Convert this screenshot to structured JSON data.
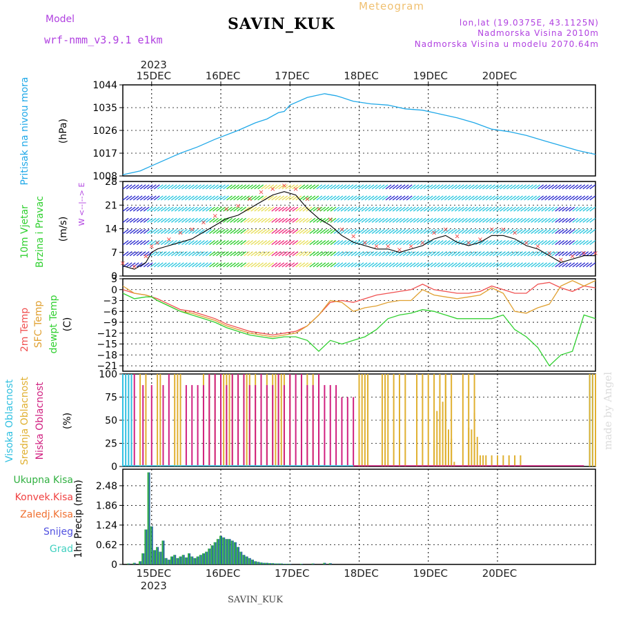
{
  "header": {
    "model_label": "Model",
    "model_name": "wrf-nmm_v3.9.1  e1km",
    "station": "SAVIN_KUK",
    "product": "Meteogram",
    "coords": "lon,lat (19.0375E, 43.1125N)",
    "elevation": "Nadmorska Visina 2010m",
    "model_elevation": "Nadmorska Visina u modelu 2070.64m",
    "watermark": "made by Angel",
    "footer_station": "SAVIN_KUK"
  },
  "colors": {
    "pressure": "#1fa8e8",
    "temp2m": "#f05050",
    "sfc_temp": "#e0a030",
    "dewpoint": "#30d030",
    "high_cloud": "#30c0e0",
    "mid_cloud": "#e0b030",
    "low_cloud": "#d02080",
    "precip_total": "#30b040",
    "precip_conv": "#f04040",
    "precip_frz": "#f07030",
    "snow": "#5050e0",
    "graupel": "#40d0c0",
    "wind_speed_line": "#000000",
    "wind_low": "#3030d0",
    "wind_mid": "#30c8e0",
    "wind_green": "#30d030",
    "wind_yellow": "#e8e060",
    "wind_pink": "#f03080",
    "gust_marker": "#f04040"
  },
  "chart_data": [
    {
      "id": "pressure",
      "type": "line",
      "ylabel": "Pritisak na nivou mora",
      "unit": "(hPa)",
      "ylim": [
        1008,
        1044
      ],
      "yticks": [
        1008,
        1017,
        1026,
        1035,
        1044
      ],
      "x_day_labels": [
        "15DEC",
        "16DEC",
        "17DEC",
        "18DEC",
        "19DEC",
        "20DEC"
      ],
      "x_year_label": "2023",
      "xlim_hours": [
        -10,
        154
      ],
      "series": [
        {
          "color_key": "pressure",
          "x": [
            -10,
            -4,
            0,
            6,
            10,
            16,
            22,
            30,
            36,
            40,
            44,
            46,
            48,
            54,
            60,
            64,
            66,
            70,
            76,
            82,
            88,
            94,
            100,
            106,
            112,
            118,
            124,
            130,
            136,
            142,
            148,
            154
          ],
          "y": [
            1008.5,
            1010,
            1012,
            1015,
            1017,
            1019.5,
            1022.5,
            1026,
            1029,
            1030.5,
            1033,
            1033.5,
            1036,
            1039,
            1040.5,
            1039.7,
            1039,
            1037.5,
            1036.5,
            1036,
            1034.5,
            1034,
            1032.5,
            1031,
            1029,
            1026.5,
            1025.5,
            1024,
            1022,
            1020,
            1018,
            1016.5
          ]
        }
      ]
    },
    {
      "id": "wind",
      "type": "line",
      "ylabel": "10m Vjetar Brzina i Pravac",
      "unit": "(m/s)",
      "direction_key": "W  <--|-->  E",
      "ylim": [
        0,
        28
      ],
      "yticks": [
        0,
        7,
        14,
        21,
        28
      ],
      "x": [
        -10,
        -6,
        -2,
        0,
        2,
        6,
        10,
        14,
        18,
        22,
        26,
        30,
        34,
        38,
        42,
        46,
        50,
        54,
        58,
        62,
        66,
        70,
        74,
        78,
        82,
        86,
        90,
        94,
        98,
        102,
        106,
        110,
        114,
        118,
        122,
        126,
        130,
        134,
        138,
        142,
        146,
        150,
        154
      ],
      "speed": [
        3,
        2,
        4,
        7,
        8,
        9,
        10,
        11,
        13,
        15,
        17,
        18,
        20,
        22,
        24,
        25,
        24,
        20,
        17,
        15,
        12,
        10,
        9,
        8,
        8,
        7,
        8,
        9,
        11,
        12,
        10,
        9,
        10,
        12,
        12,
        11,
        9,
        8,
        6,
        4,
        5,
        6,
        6
      ],
      "gust": [
        4,
        3,
        6,
        9,
        10,
        11,
        13,
        14,
        16,
        18,
        20,
        21,
        23,
        25,
        26,
        27,
        26,
        23,
        20,
        17,
        14,
        12,
        10,
        9,
        9,
        8,
        9,
        10,
        13,
        14,
        12,
        10,
        11,
        14,
        14,
        13,
        10,
        9,
        7,
        5,
        6,
        7,
        7
      ]
    },
    {
      "id": "temperature",
      "type": "line",
      "ylabel": [
        "2m Temp",
        "SFC Temp",
        "dewpt Temp"
      ],
      "unit": "(C)",
      "ylim": [
        -22.5,
        3
      ],
      "yticks": [
        3,
        0,
        -3,
        -6,
        -9,
        -12,
        -15,
        -18,
        -21
      ],
      "x": [
        -10,
        -6,
        -2,
        0,
        2,
        6,
        10,
        14,
        18,
        22,
        26,
        30,
        34,
        38,
        42,
        46,
        50,
        54,
        58,
        62,
        66,
        70,
        74,
        78,
        82,
        86,
        90,
        94,
        98,
        102,
        106,
        110,
        114,
        118,
        122,
        126,
        130,
        134,
        138,
        142,
        146,
        150,
        154
      ],
      "series": [
        {
          "name": "2m Temp",
          "color_key": "temp2m",
          "y": [
            0,
            -1,
            -1.5,
            -2,
            -2.5,
            -4,
            -5.5,
            -6,
            -7,
            -8,
            -9.5,
            -10.5,
            -11.5,
            -12,
            -12.5,
            -12,
            -11.5,
            -10,
            -7,
            -3.5,
            -3,
            -3.5,
            -2.5,
            -1.5,
            -1,
            -0.5,
            0,
            1.5,
            0,
            -0.5,
            -1,
            -1,
            -0.5,
            1,
            0,
            -1,
            -1,
            1.5,
            2,
            0.5,
            -0.5,
            1,
            0.5
          ]
        },
        {
          "name": "SFC Temp",
          "color_key": "sfc_temp",
          "y": [
            1,
            -1,
            -1.5,
            -2,
            -3,
            -4.5,
            -6,
            -6.5,
            -7.5,
            -8.5,
            -10,
            -11,
            -12,
            -12.5,
            -13,
            -12.5,
            -12,
            -10,
            -7,
            -3,
            -3.5,
            -6,
            -5,
            -4.5,
            -3.5,
            -3,
            -3,
            0,
            -1.5,
            -2,
            -2.5,
            -2,
            -1.5,
            0.5,
            -1,
            -6,
            -6.5,
            -5,
            -4,
            1,
            2.5,
            1,
            2.5
          ]
        },
        {
          "name": "dewpt Temp",
          "color_key": "dewpoint",
          "y": [
            -1,
            -2.5,
            -2,
            -2,
            -3,
            -4.5,
            -6,
            -7,
            -8,
            -9,
            -10.5,
            -11.5,
            -12.5,
            -13,
            -13.5,
            -13,
            -13,
            -14,
            -17,
            -14,
            -15,
            -14,
            -13,
            -11,
            -8,
            -7,
            -6.5,
            -5.5,
            -6,
            -7,
            -8,
            -8,
            -8,
            -8,
            -7,
            -11,
            -13,
            -16,
            -21,
            -18,
            -17,
            -7,
            -8
          ]
        }
      ]
    },
    {
      "id": "cloud",
      "type": "bar",
      "ylabel": [
        "Visoka Oblacnost",
        "Srednja Oblacnost",
        "Niska Oblacnost"
      ],
      "unit": "(%)",
      "ylim": [
        0,
        100
      ],
      "yticks": [
        0,
        25,
        50,
        75,
        100
      ],
      "series": [
        {
          "name": "Visoka Oblacnost",
          "color_key": "high_cloud",
          "x": [
            -10,
            -9,
            -8,
            -7,
            152,
            153,
            154
          ],
          "y": [
            100,
            100,
            100,
            100,
            100,
            100,
            100
          ]
        },
        {
          "name": "Srednja Oblacnost",
          "color_key": "mid_cloud",
          "x": [
            -4,
            -2,
            2,
            3,
            8,
            9,
            10,
            18,
            20,
            22,
            24,
            25,
            26,
            27,
            28,
            30,
            32,
            33,
            34,
            36,
            38,
            40,
            42,
            43,
            44,
            45,
            46,
            48,
            52,
            54,
            56,
            58,
            72,
            73,
            74,
            75,
            80,
            81,
            82,
            84,
            86,
            88,
            92,
            94,
            96,
            98,
            100,
            102,
            104,
            108,
            110,
            112,
            152,
            153,
            154
          ],
          "y": [
            100,
            100,
            100,
            100,
            100,
            100,
            100,
            100,
            100,
            100,
            100,
            100,
            100,
            100,
            100,
            100,
            100,
            100,
            100,
            100,
            100,
            100,
            100,
            100,
            100,
            100,
            100,
            100,
            100,
            100,
            100,
            100,
            100,
            100,
            100,
            100,
            100,
            100,
            100,
            100,
            100,
            100,
            100,
            100,
            100,
            100,
            100,
            100,
            100,
            100,
            100,
            100,
            100,
            100,
            100
          ]
        },
        {
          "name": "Niska Oblacnost",
          "color_key": "low_cloud",
          "x": [
            -6,
            -3,
            0,
            4,
            6,
            12,
            14,
            16,
            18,
            20,
            22,
            24,
            26,
            28,
            30,
            32,
            34,
            36,
            38,
            40,
            42,
            44,
            46,
            48,
            50,
            52,
            54,
            56,
            58,
            60,
            62,
            64,
            66,
            68,
            70
          ],
          "y": [
            100,
            88,
            88,
            88,
            100,
            88,
            88,
            88,
            88,
            100,
            100,
            100,
            88,
            100,
            100,
            100,
            88,
            88,
            100,
            88,
            88,
            100,
            88,
            100,
            100,
            100,
            88,
            88,
            100,
            88,
            88,
            88,
            75,
            75,
            75
          ]
        }
      ],
      "mid_extra": {
        "x": [
          98,
          99,
          100,
          101,
          102,
          103,
          104,
          105,
          110,
          111,
          112,
          113,
          114,
          115,
          116,
          118,
          120,
          122,
          124,
          126,
          128
        ],
        "y": [
          28,
          60,
          65,
          70,
          100,
          40,
          30,
          5,
          42,
          40,
          58,
          32,
          12,
          12,
          12,
          12,
          12,
          12,
          12,
          12,
          12
        ]
      }
    },
    {
      "id": "precip",
      "type": "bar",
      "ylabel": "1hr Precip",
      "unit": "(mm)",
      "ylim": [
        0,
        3.0
      ],
      "yticks": [
        0,
        0.62,
        1.24,
        1.86,
        2.48
      ],
      "legend": [
        "Ukupna Kisa",
        "Konvek.Kisa",
        "Zaledj.Kisa",
        "Snijeg",
        "Grad"
      ],
      "series": [
        {
          "name": "Snijeg",
          "color_key": "snow",
          "x": [
            -8,
            -6,
            -4,
            -3,
            -2,
            -1,
            0,
            1,
            2,
            3,
            4,
            5,
            6,
            7,
            8,
            9,
            10,
            11,
            12,
            13,
            14,
            15,
            16,
            17,
            18,
            19,
            20,
            21,
            22,
            23,
            24,
            25,
            26,
            27,
            28,
            29,
            30,
            31,
            32,
            33,
            34,
            35,
            36,
            37,
            38,
            39,
            40,
            41,
            42,
            43,
            44,
            45,
            46,
            47,
            48,
            52,
            56,
            60,
            62
          ],
          "y": [
            0.03,
            0.05,
            0.1,
            0.35,
            1.1,
            2.9,
            1.2,
            0.45,
            0.55,
            0.4,
            0.75,
            0.2,
            0.15,
            0.25,
            0.3,
            0.2,
            0.25,
            0.3,
            0.22,
            0.35,
            0.25,
            0.2,
            0.25,
            0.3,
            0.35,
            0.4,
            0.5,
            0.6,
            0.7,
            0.8,
            0.9,
            0.85,
            0.8,
            0.8,
            0.75,
            0.7,
            0.55,
            0.4,
            0.3,
            0.25,
            0.2,
            0.15,
            0.1,
            0.08,
            0.06,
            0.05,
            0.05,
            0.04,
            0.04,
            0.03,
            0.03,
            0.03,
            0.02,
            0.02,
            0.02,
            0.02,
            0.03,
            0.05,
            0.04
          ]
        }
      ]
    }
  ]
}
